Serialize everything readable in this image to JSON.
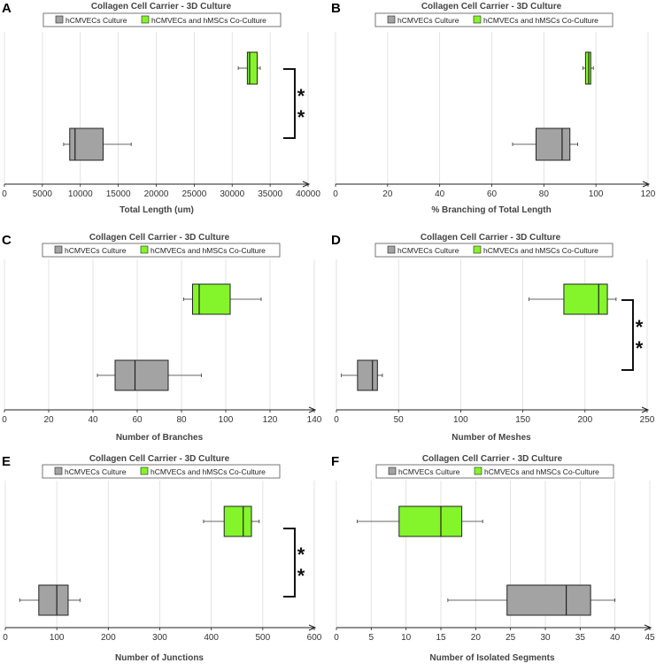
{
  "colors": {
    "gray": "#a3a3a3",
    "green": "#84f52a",
    "axis": "#222222",
    "grid": "#dcdcdc"
  },
  "chart_data": [
    {
      "panel_label": "A",
      "type": "boxplot",
      "title": "Collagen Cell Carrier - 3D Culture",
      "legend": [
        "hCMVECs Culture",
        "hCMVECs and hMSCs Co-Culture"
      ],
      "xlabel": "Total Length (um)",
      "xlim": [
        0,
        40000
      ],
      "ticks": [
        0,
        5000,
        10000,
        15000,
        20000,
        25000,
        30000,
        35000,
        40000
      ],
      "series": [
        {
          "name": "hCMVECs Culture",
          "min": 7800,
          "q1": 8600,
          "median": 9300,
          "q3": 13000,
          "max": 16700
        },
        {
          "name": "hCMVECs and hMSCs Co-Culture",
          "min": 30800,
          "q1": 32000,
          "median": 32300,
          "q3": 33300,
          "max": 33700
        }
      ],
      "significance": "**"
    },
    {
      "panel_label": "B",
      "type": "boxplot",
      "title": "Collagen Cell Carrier - 3D Culture",
      "legend": [
        "hCMVECs Culture",
        "hCMVECs and hMSCs Co-Culture"
      ],
      "xlabel": "% Branching of Total Length",
      "xlim": [
        0,
        120
      ],
      "ticks": [
        0,
        20,
        40,
        60,
        80,
        100,
        120
      ],
      "series": [
        {
          "name": "hCMVECs Culture",
          "min": 68,
          "q1": 77,
          "median": 87,
          "q3": 90,
          "max": 93
        },
        {
          "name": "hCMVECs and hMSCs Co-Culture",
          "min": 95,
          "q1": 96,
          "median": 97.2,
          "q3": 98,
          "max": 99
        }
      ],
      "significance": ""
    },
    {
      "panel_label": "C",
      "type": "boxplot",
      "title": "Collagen Cell Carrier - 3D Culture",
      "legend": [
        "hCMVECs Culture",
        "hCMVECs and hMSCs Co-Culture"
      ],
      "xlabel": "Number of Branches",
      "xlim": [
        0,
        140
      ],
      "ticks": [
        0,
        20,
        40,
        60,
        80,
        100,
        120,
        140
      ],
      "series": [
        {
          "name": "hCMVECs Culture",
          "min": 42,
          "q1": 50,
          "median": 59,
          "q3": 74,
          "max": 89
        },
        {
          "name": "hCMVECs and hMSCs Co-Culture",
          "min": 81,
          "q1": 85,
          "median": 88,
          "q3": 102,
          "max": 116
        }
      ],
      "significance": ""
    },
    {
      "panel_label": "D",
      "type": "boxplot",
      "title": "Collagen Cell Carrier - 3D Culture",
      "legend": [
        "hCMVECs Culture",
        "hCMVECs and hMSCs Co-Culture"
      ],
      "xlabel": "Number of Meshes",
      "xlim": [
        0,
        250
      ],
      "ticks": [
        0,
        50,
        100,
        150,
        200,
        250
      ],
      "series": [
        {
          "name": "hCMVECs Culture",
          "min": 4,
          "q1": 17,
          "median": 29,
          "q3": 33,
          "max": 37
        },
        {
          "name": "hCMVECs and hMSCs Co-Culture",
          "min": 155,
          "q1": 183,
          "median": 211,
          "q3": 218,
          "max": 225
        }
      ],
      "significance": "**"
    },
    {
      "panel_label": "E",
      "type": "boxplot",
      "title": "Collagen Cell Carrier - 3D Culture",
      "legend": [
        "hCMVECs Culture",
        "hCMVECs and hMSCs Co-Culture"
      ],
      "xlabel": "Number of Junctions",
      "xlim": [
        0,
        600
      ],
      "ticks": [
        0,
        100,
        200,
        300,
        400,
        500,
        600
      ],
      "series": [
        {
          "name": "hCMVECs Culture",
          "min": 28,
          "q1": 65,
          "median": 100,
          "q3": 122,
          "max": 145
        },
        {
          "name": "hCMVECs and hMSCs Co-Culture",
          "min": 385,
          "q1": 425,
          "median": 462,
          "q3": 478,
          "max": 493
        }
      ],
      "significance": "**"
    },
    {
      "panel_label": "F",
      "type": "boxplot",
      "title": "Collagen Cell Carrier - 3D Culture",
      "legend": [
        "hCMVECs Culture",
        "hCMVECs and hMSCs Co-Culture"
      ],
      "xlabel": "Number of Isolated Segments",
      "xlim": [
        0,
        45
      ],
      "ticks": [
        0,
        5,
        10,
        15,
        20,
        25,
        30,
        35,
        40,
        45
      ],
      "series": [
        {
          "name": "hCMVECs Culture",
          "min": 16,
          "q1": 24.5,
          "median": 33,
          "q3": 36.5,
          "max": 40
        },
        {
          "name": "hCMVECs and hMSCs Co-Culture",
          "min": 3,
          "q1": 9,
          "median": 15,
          "q3": 18,
          "max": 21
        }
      ],
      "significance": ""
    }
  ]
}
